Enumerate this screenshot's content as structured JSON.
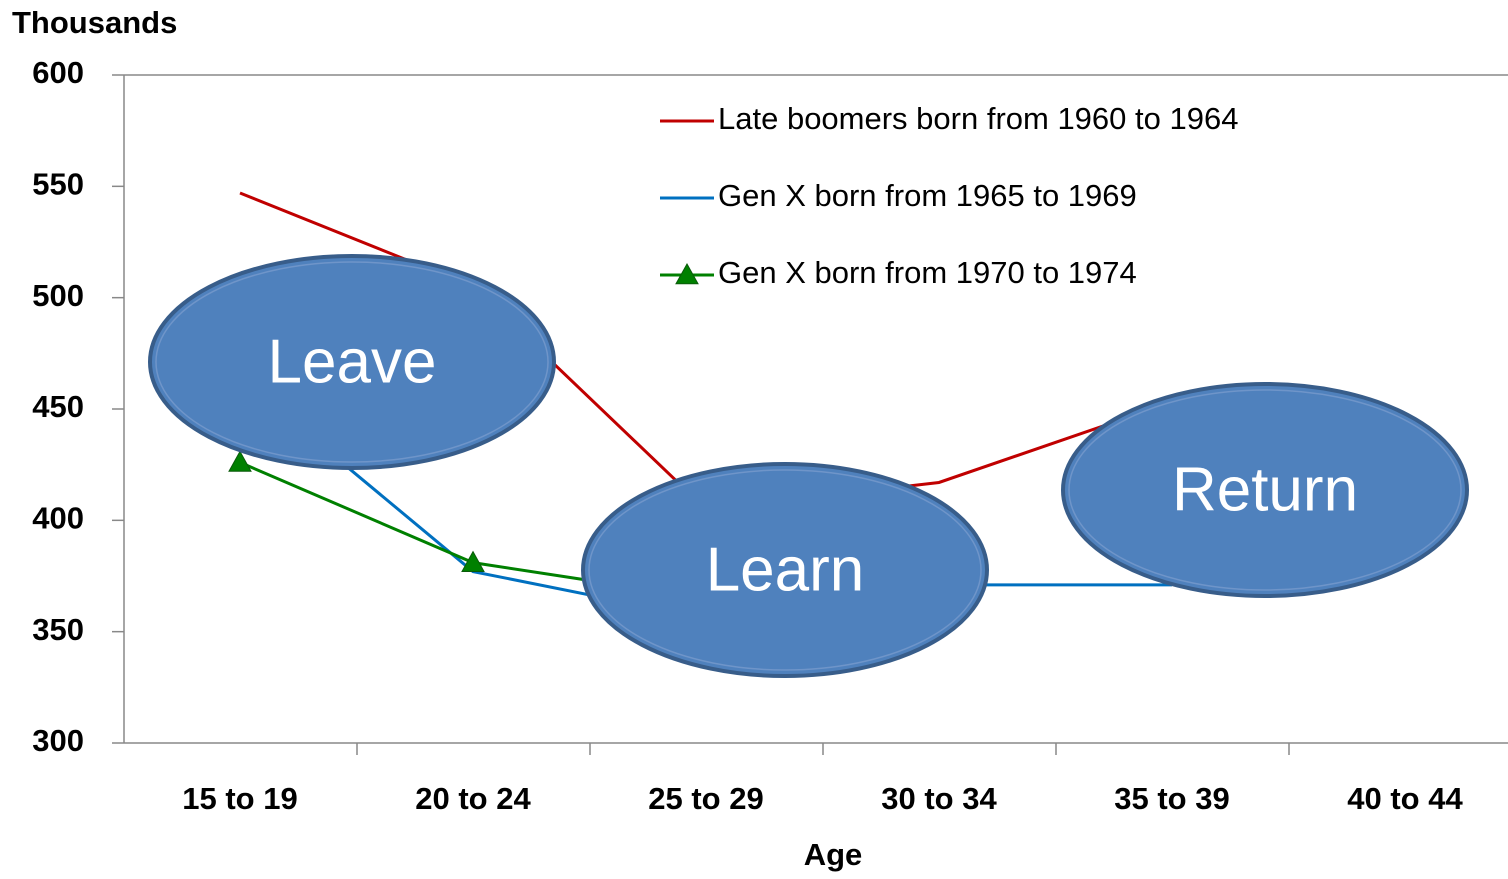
{
  "chart_data": {
    "type": "line",
    "y_axis_label": "Thousands",
    "x_axis_label": "Age",
    "categories": [
      "15 to 19",
      "20 to 24",
      "25 to 29",
      "30 to 34",
      "35 to 39",
      "40 to 44"
    ],
    "series": [
      {
        "name": "Late boomers born from 1960 to 1964",
        "color": "#c00000",
        "marker": null,
        "values": [
          547,
          505,
          405,
          417,
          453,
          null
        ]
      },
      {
        "name": "Gen X born from 1965 to 1969",
        "color": "#0070c0",
        "marker": null,
        "values": [
          464,
          377,
          356,
          371,
          371,
          null
        ]
      },
      {
        "name": "Gen X born from 1970 to 1974",
        "color": "#008000",
        "marker": "triangle",
        "values": [
          426,
          381,
          365,
          null,
          null,
          null
        ]
      }
    ],
    "ylim": [
      300,
      600
    ],
    "yticks": [
      300,
      350,
      400,
      450,
      500,
      550,
      600
    ],
    "annotations": [
      {
        "text": "Leave",
        "category": 0
      },
      {
        "text": "Learn",
        "category": 2
      },
      {
        "text": "Return",
        "category": 4
      }
    ]
  }
}
